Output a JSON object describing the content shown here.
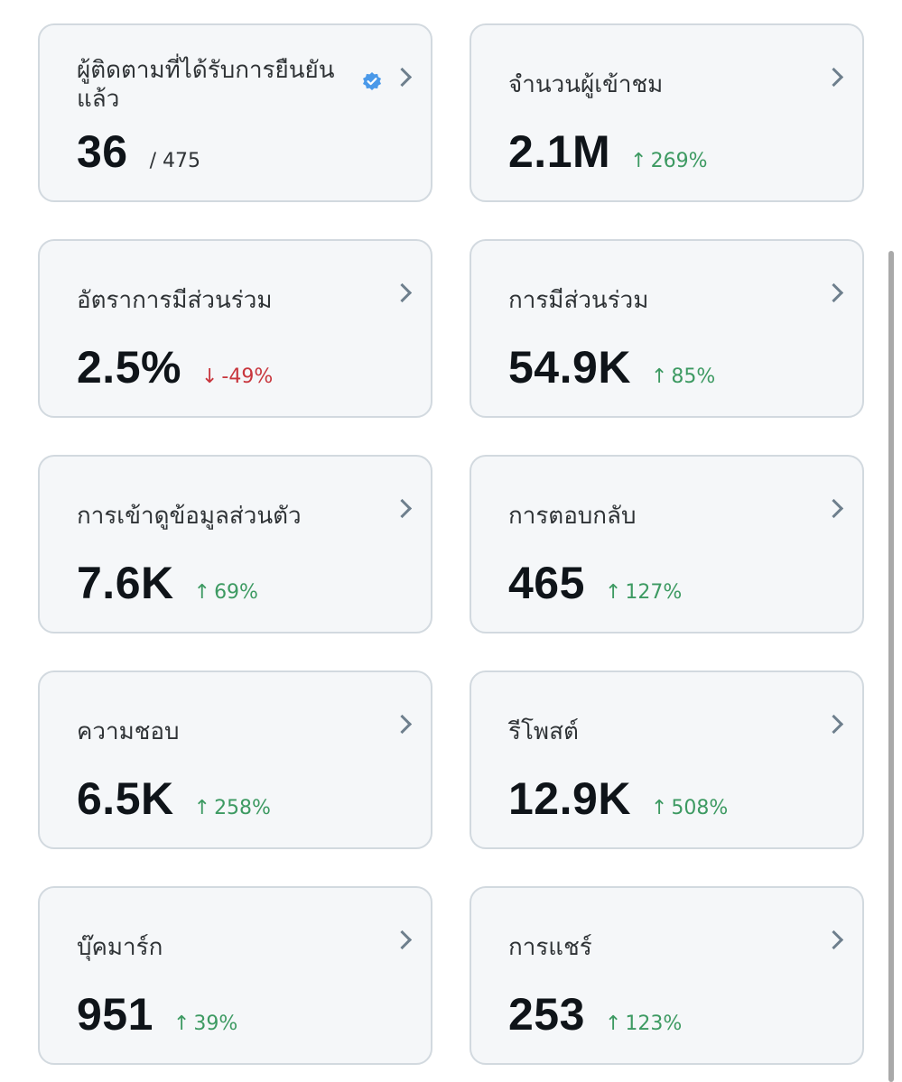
{
  "cards": [
    {
      "title": "ผู้ติดตามที่ได้รับการยืนยันแล้ว",
      "value": "36",
      "total": "/ 475",
      "verified_icon": "verified-badge-icon",
      "verified_color": "#4a99e9"
    },
    {
      "title": "จำนวนผู้เข้าชม",
      "value": "2.1M",
      "change_arrow": "↑",
      "change": "269%",
      "direction": "up"
    },
    {
      "title": "อัตราการมีส่วนร่วม",
      "value": "2.5%",
      "change_arrow": "↓",
      "change": "-49%",
      "direction": "down"
    },
    {
      "title": "การมีส่วนร่วม",
      "value": "54.9K",
      "change_arrow": "↑",
      "change": "85%",
      "direction": "up"
    },
    {
      "title": "การเข้าดูข้อมูลส่วนตัว",
      "value": "7.6K",
      "change_arrow": "↑",
      "change": "69%",
      "direction": "up"
    },
    {
      "title": "การตอบกลับ",
      "value": "465",
      "change_arrow": "↑",
      "change": "127%",
      "direction": "up"
    },
    {
      "title": "ความชอบ",
      "value": "6.5K",
      "change_arrow": "↑",
      "change": "258%",
      "direction": "up"
    },
    {
      "title": "รีโพสต์",
      "value": "12.9K",
      "change_arrow": "↑",
      "change": "508%",
      "direction": "up"
    },
    {
      "title": "บุ๊คมาร์ก",
      "value": "951",
      "change_arrow": "↑",
      "change": "39%",
      "direction": "up"
    },
    {
      "title": "การแชร์",
      "value": "253",
      "change_arrow": "↑",
      "change": "123%",
      "direction": "up"
    }
  ],
  "colors": {
    "up": "#3d9a62",
    "down": "#c8363d",
    "card_bg": "#f5f7f9",
    "card_border": "#d2d9df",
    "chevron": "#6e7f8d"
  },
  "icons": {
    "chevron": "chevron-right-icon",
    "verified": "verified-badge-icon"
  }
}
